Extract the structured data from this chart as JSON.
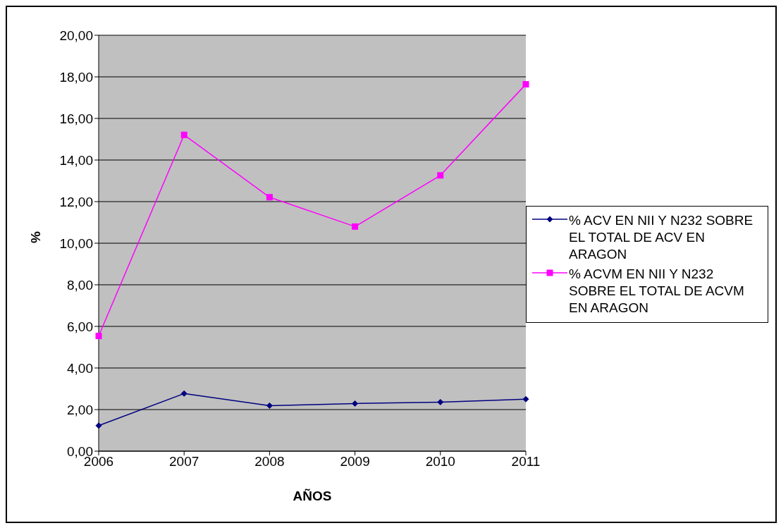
{
  "chart_data": {
    "type": "line",
    "xlabel": "AÑOS",
    "ylabel": "%",
    "categories": [
      "2006",
      "2007",
      "2008",
      "2009",
      "2010",
      "2011"
    ],
    "series": [
      {
        "name": "% ACV EN NII Y N232 SOBRE EL TOTAL DE ACV EN ARAGON",
        "color": "#000080",
        "marker": "diamond",
        "values": [
          1.23,
          2.77,
          2.19,
          2.29,
          2.36,
          2.5
        ]
      },
      {
        "name": "% ACVM EN NII Y N232 SOBRE EL TOTAL DE ACVM EN ARAGON",
        "color": "#ff00ff",
        "marker": "square",
        "values": [
          5.54,
          15.21,
          12.21,
          10.8,
          13.26,
          17.64
        ]
      }
    ],
    "ylim": [
      0,
      20
    ],
    "yticks": [
      {
        "value": 0,
        "label": "0,00"
      },
      {
        "value": 2,
        "label": "2,00"
      },
      {
        "value": 4,
        "label": "4,00"
      },
      {
        "value": 6,
        "label": "6,00"
      },
      {
        "value": 8,
        "label": "8,00"
      },
      {
        "value": 10,
        "label": "10,00"
      },
      {
        "value": 12,
        "label": "12,00"
      },
      {
        "value": 14,
        "label": "14,00"
      },
      {
        "value": 16,
        "label": "16,00"
      },
      {
        "value": 18,
        "label": "18,00"
      },
      {
        "value": 20,
        "label": "20,00"
      }
    ],
    "grid": "y",
    "legend": "right",
    "line_style": "solid"
  }
}
